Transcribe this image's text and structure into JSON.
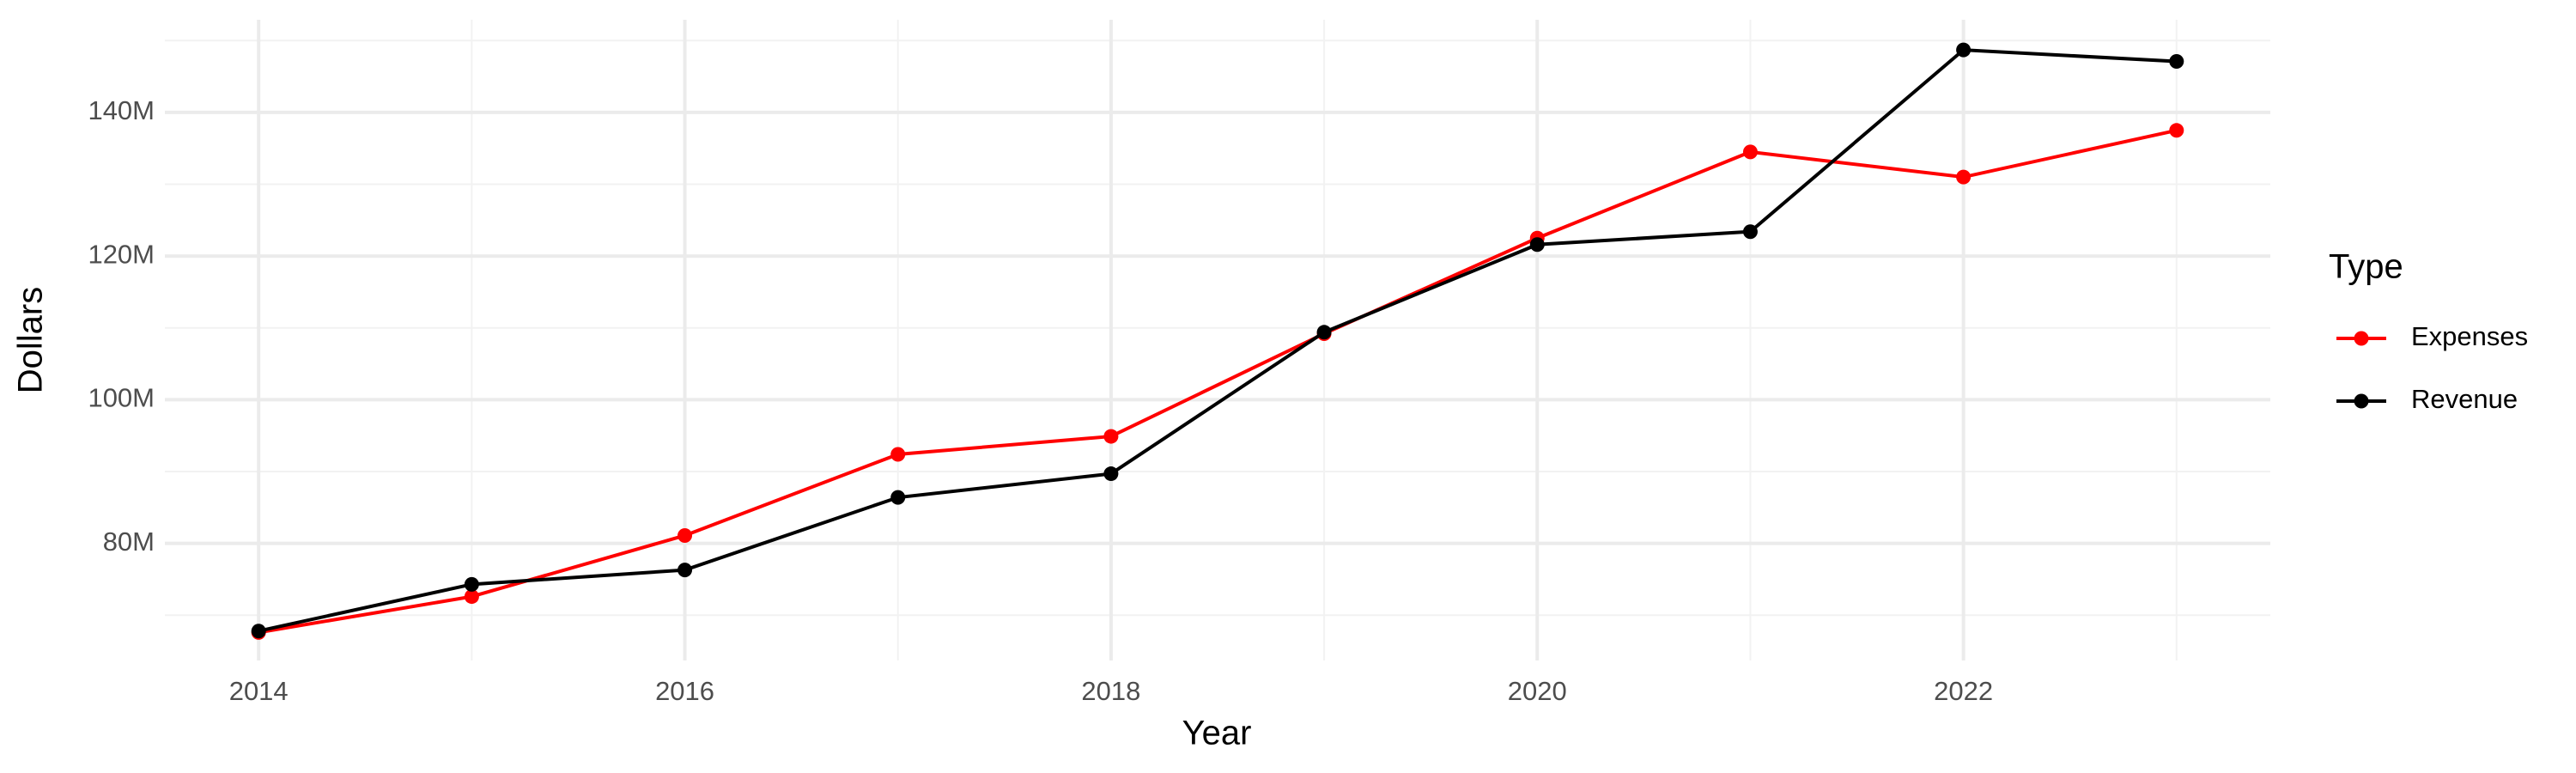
{
  "chart_data": {
    "type": "line",
    "x_label": "Year",
    "y_label": "Dollars",
    "legend_title": "Type",
    "legend_position": "right",
    "grid": true,
    "x": [
      2014,
      2015,
      2016,
      2017,
      2018,
      2019,
      2020,
      2021,
      2022,
      2023
    ],
    "series": [
      {
        "name": "Expenses",
        "color": "#ff0000",
        "values": [
          67600000,
          72600000,
          81100000,
          92400000,
          94900000,
          109200000,
          122500000,
          134500000,
          131000000,
          137500000
        ]
      },
      {
        "name": "Revenue",
        "color": "#000000",
        "values": [
          67800000,
          74300000,
          76300000,
          86400000,
          89700000,
          109400000,
          121600000,
          123400000,
          148700000,
          147100000
        ]
      }
    ],
    "xlim": [
      2013.56,
      2023.44
    ],
    "xticks": [
      2014,
      2016,
      2018,
      2020,
      2022
    ],
    "ylim": [
      63700000,
      152900000
    ],
    "yticks": [
      {
        "value": 80000000,
        "label": "80M"
      },
      {
        "value": 100000000,
        "label": "100M"
      },
      {
        "value": 120000000,
        "label": "120M"
      },
      {
        "value": 140000000,
        "label": "140M"
      }
    ]
  }
}
